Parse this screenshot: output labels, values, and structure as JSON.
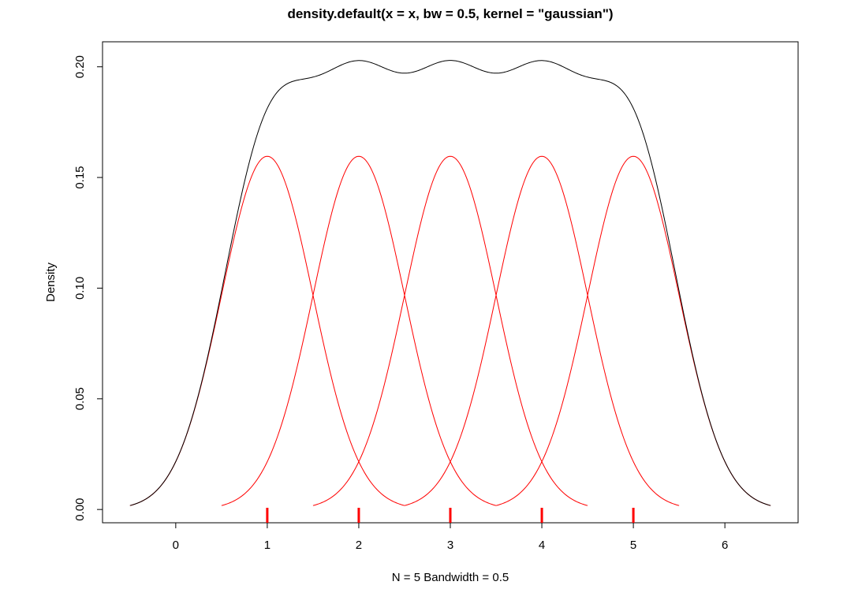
{
  "chart_data": {
    "type": "line",
    "title": "density.default(x = x, bw = 0.5, kernel = \"gaussian\")",
    "xlabel": "N = 5   Bandwidth = 0.5",
    "ylabel": "Density",
    "xlim": [
      -0.8,
      6.8
    ],
    "ylim": [
      -0.006,
      0.2113
    ],
    "x_ticks": [
      "0",
      "1",
      "2",
      "3",
      "4",
      "5",
      "6"
    ],
    "y_ticks": [
      "0.00",
      "0.05",
      "0.10",
      "0.15",
      "0.20"
    ],
    "observations": [
      1,
      2,
      3,
      4,
      5
    ],
    "bandwidth": 0.5,
    "kernel": "gaussian",
    "density_curve": {
      "color": "#000000",
      "x_range": [
        -0.5,
        6.5
      ],
      "sample_x": [
        -0.5,
        0.0,
        0.5,
        1.0,
        1.5,
        2.0,
        2.5,
        3.0,
        3.5,
        4.0,
        4.5,
        5.0,
        5.5,
        6.0,
        6.5
      ],
      "sample_y": [
        0.0018,
        0.0275,
        0.1008,
        0.1796,
        0.1953,
        0.2026,
        0.1974,
        0.2029,
        0.1974,
        0.2026,
        0.1953,
        0.1796,
        0.1008,
        0.0275,
        0.0018
      ]
    },
    "kernel_curves": {
      "color": "#ff0000",
      "half_width": 1.5,
      "peak": 0.1596,
      "centers": [
        1,
        2,
        3,
        4,
        5
      ]
    },
    "rug_color": "#ff0000"
  }
}
